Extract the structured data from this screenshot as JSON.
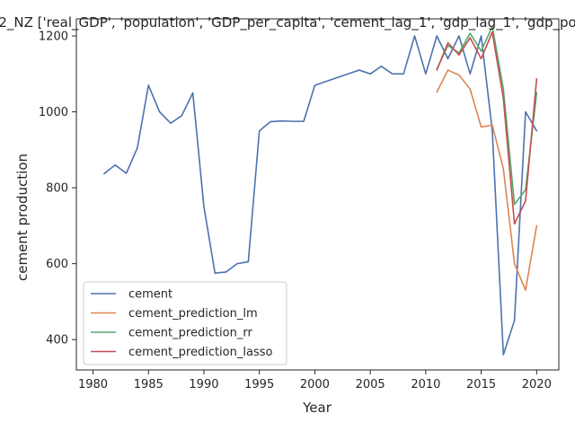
{
  "chart_data": {
    "type": "line",
    "title": "2_NZ ['real_GDP', 'population', 'GDP_per_capita', 'cement_lag_1', 'gdp_lag_1', 'gdp_po",
    "xlabel": "Year",
    "ylabel": "cement production",
    "xlim": [
      1978.5,
      2022
    ],
    "ylim": [
      320,
      1245
    ],
    "xticks": [
      1980,
      1985,
      1990,
      1995,
      2000,
      2005,
      2010,
      2015,
      2020
    ],
    "yticks": [
      400,
      600,
      800,
      1000,
      1200
    ],
    "grid": false,
    "legend_position": "lower-left",
    "series": [
      {
        "name": "cement",
        "color": "#4c72b0",
        "x": [
          1981,
          1982,
          1983,
          1984,
          1985,
          1986,
          1987,
          1988,
          1989,
          1990,
          1991,
          1992,
          1993,
          1994,
          1995,
          1996,
          1997,
          1998,
          1999,
          2000,
          2001,
          2002,
          2003,
          2004,
          2005,
          2006,
          2007,
          2008,
          2009,
          2010,
          2011,
          2012,
          2013,
          2014,
          2015,
          2016,
          2017,
          2018,
          2019,
          2020
        ],
        "y": [
          837,
          860,
          838,
          905,
          1070,
          1000,
          970,
          990,
          1050,
          750,
          575,
          578,
          600,
          605,
          950,
          974,
          976,
          975,
          975,
          1070,
          1080,
          1090,
          1100,
          1110,
          1100,
          1120,
          1100,
          1100,
          1200,
          1100,
          1200,
          1140,
          1200,
          1100,
          1200,
          950,
          360,
          450,
          1000,
          950
        ]
      },
      {
        "name": "cement_prediction_lm",
        "color": "#dd8452",
        "x": [
          2011,
          2012,
          2013,
          2014,
          2015,
          2016,
          2017,
          2018,
          2019,
          2020
        ],
        "y": [
          1052,
          1110,
          1097,
          1060,
          960,
          965,
          850,
          600,
          530,
          700
        ]
      },
      {
        "name": "cement_prediction_rr",
        "color": "#55a868",
        "x": [
          2011,
          2012,
          2013,
          2014,
          2015,
          2016,
          2017,
          2018,
          2019,
          2020
        ],
        "y": [
          1112,
          1175,
          1155,
          1207,
          1160,
          1225,
          1060,
          756,
          795,
          1050
        ]
      },
      {
        "name": "cement_prediction_lasso",
        "color": "#c44e52",
        "x": [
          2011,
          2012,
          2013,
          2014,
          2015,
          2016,
          2017,
          2018,
          2019,
          2020
        ],
        "y": [
          1110,
          1182,
          1150,
          1195,
          1140,
          1210,
          1035,
          705,
          765,
          1087
        ]
      }
    ]
  }
}
